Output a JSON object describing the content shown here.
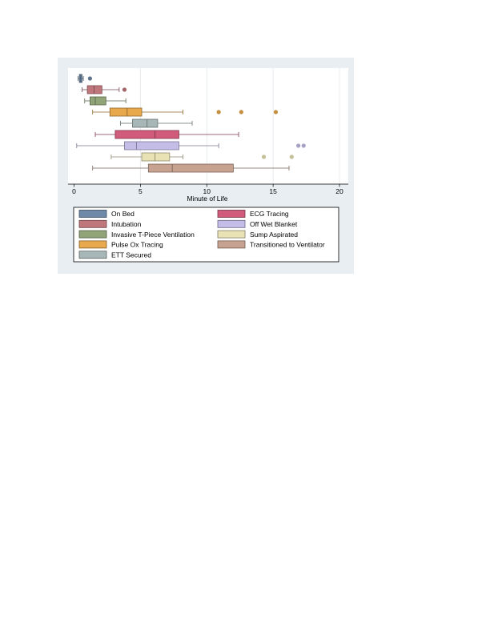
{
  "chart_data": {
    "type": "boxplot",
    "orientation": "horizontal",
    "title": "",
    "xlabel": "Minute of Life",
    "ylabel": "",
    "xlim": [
      0,
      20
    ],
    "xticks": [
      "0",
      "5",
      "10",
      "15",
      "20"
    ],
    "grid": true,
    "legend_position": "bottom",
    "series": [
      {
        "name": "On Bed",
        "color": "#6f8aa8",
        "min": 0.3,
        "q1": 0.4,
        "median": 0.5,
        "q3": 0.6,
        "max": 0.7,
        "outliers": [
          1.2
        ]
      },
      {
        "name": "Intubation",
        "color": "#c0777c",
        "min": 0.6,
        "q1": 1.0,
        "median": 1.5,
        "q3": 2.1,
        "max": 3.4,
        "outliers": [
          3.8
        ]
      },
      {
        "name": "Invasive T-Piece Ventilation",
        "color": "#90a478",
        "min": 0.8,
        "q1": 1.2,
        "median": 1.6,
        "q3": 2.4,
        "max": 3.9,
        "outliers": []
      },
      {
        "name": "Pulse Ox Tracing",
        "color": "#e8a84c",
        "min": 1.4,
        "q1": 2.7,
        "median": 4.0,
        "q3": 5.1,
        "max": 8.2,
        "outliers": [
          10.9,
          12.6,
          15.2
        ]
      },
      {
        "name": "ETT Secured",
        "color": "#a7b6b6",
        "min": 3.5,
        "q1": 4.4,
        "median": 5.5,
        "q3": 6.3,
        "max": 8.9,
        "outliers": []
      },
      {
        "name": "ECG Tracing",
        "color": "#d05b7b",
        "min": 1.6,
        "q1": 3.1,
        "median": 6.1,
        "q3": 7.9,
        "max": 12.4,
        "outliers": []
      },
      {
        "name": "Off Wet Blanket",
        "color": "#c4bde8",
        "min": 0.2,
        "q1": 3.8,
        "median": 4.7,
        "q3": 7.9,
        "max": 10.9,
        "outliers": [
          16.9,
          17.3
        ]
      },
      {
        "name": "Sump Aspirated",
        "color": "#e8e2b4",
        "min": 2.8,
        "q1": 5.1,
        "median": 6.1,
        "q3": 7.2,
        "max": 8.2,
        "outliers": [
          14.3,
          16.4
        ]
      },
      {
        "name": "Transitioned to Ventilator",
        "color": "#c7a290",
        "min": 1.4,
        "q1": 5.6,
        "median": 7.4,
        "q3": 12.0,
        "max": 16.2,
        "outliers": []
      }
    ],
    "legend_layout": [
      [
        "On Bed",
        "ECG Tracing"
      ],
      [
        "Intubation",
        "Off Wet Blanket"
      ],
      [
        "Invasive T-Piece Ventilation",
        "Sump Aspirated"
      ],
      [
        "Pulse Ox Tracing",
        "Transitioned to Ventilator"
      ],
      [
        "ETT Secured",
        ""
      ]
    ]
  },
  "colors": {
    "figure_background": "#e8eef2",
    "plot_background": "#ffffff",
    "grid": "#e3e8ec",
    "axis": "#000000"
  }
}
